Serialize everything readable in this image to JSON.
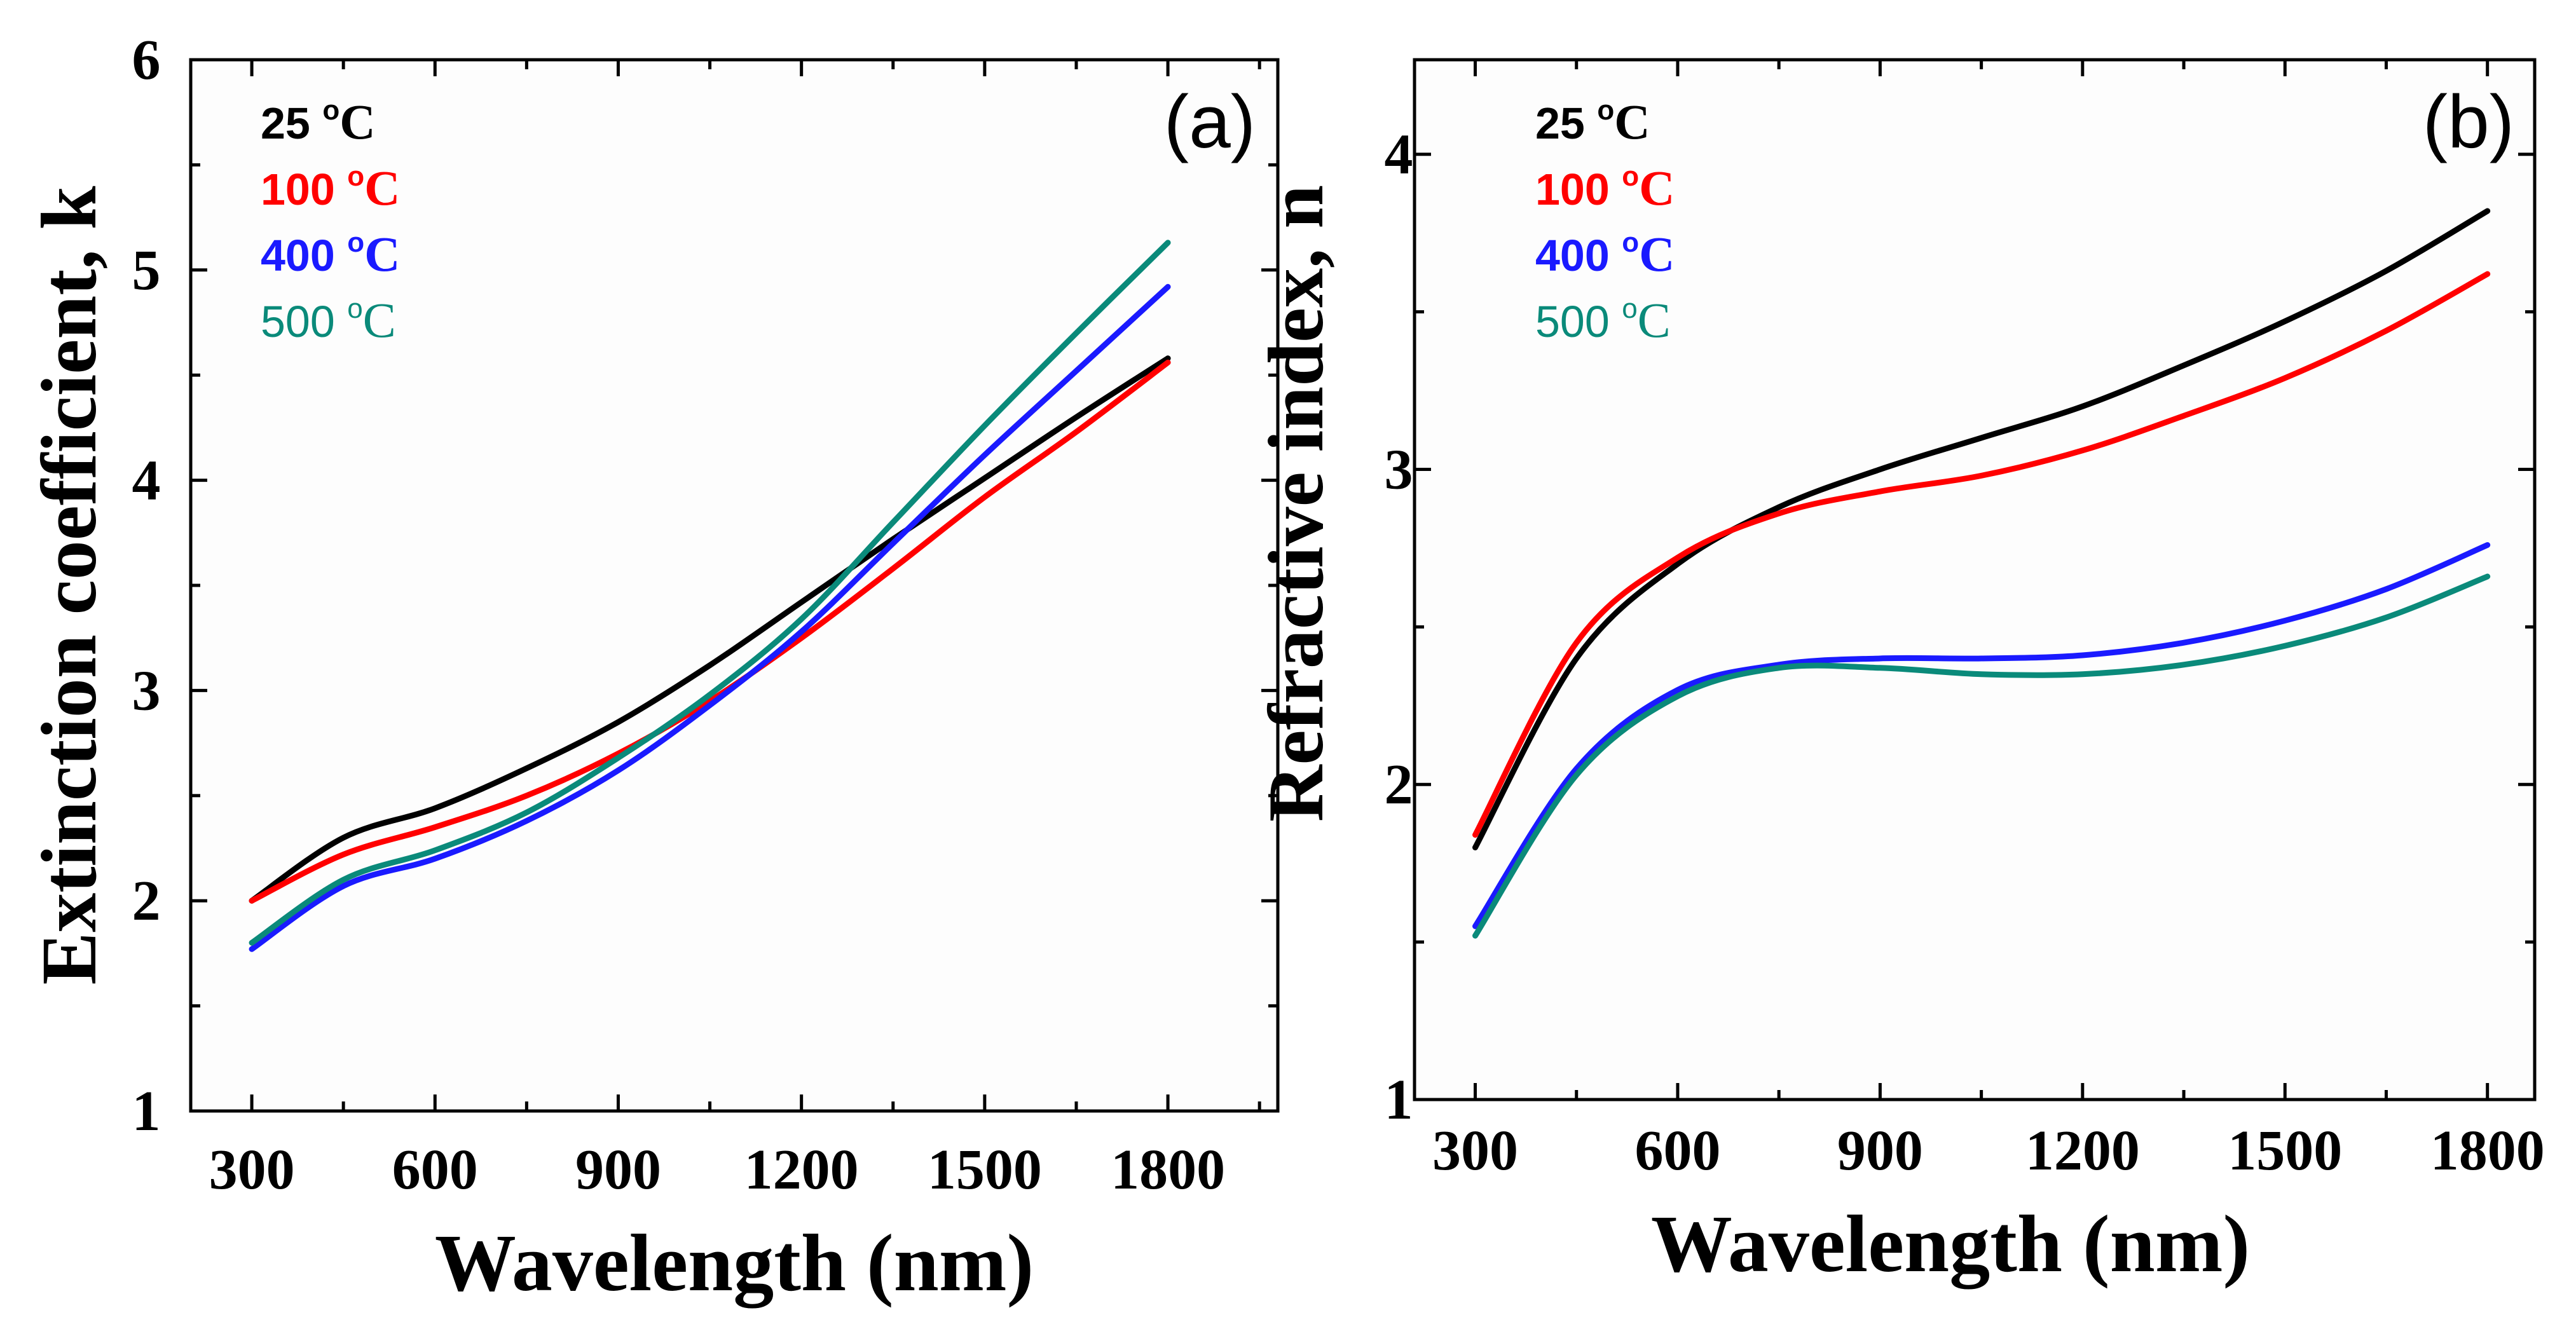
{
  "chart_data": [
    {
      "id": "a",
      "type": "line",
      "panel_label": "(a)",
      "xlabel": "Wavelength (nm)",
      "ylabel": "Extinction coefficient, k",
      "xlim": [
        200,
        1980
      ],
      "ylim": [
        1,
        6
      ],
      "xticks": [
        300,
        600,
        900,
        1200,
        1500,
        1800
      ],
      "xtick_labels": [
        "300",
        "600",
        "900",
        "1200",
        "1500",
        "1800"
      ],
      "yticks": [
        1,
        2,
        3,
        4,
        5,
        6
      ],
      "ytick_labels": [
        "1",
        "2",
        "3",
        "4",
        "5",
        "6"
      ],
      "legend_position": "top-left",
      "grid": false,
      "x": [
        300,
        450,
        600,
        750,
        900,
        1050,
        1200,
        1350,
        1500,
        1650,
        1800
      ],
      "series": [
        {
          "name": "25",
          "legend_label": "25 ",
          "superscript": "o",
          "unit": "C",
          "color": "#000000",
          "values": [
            2.0,
            2.3,
            2.44,
            2.63,
            2.85,
            3.12,
            3.42,
            3.72,
            4.01,
            4.3,
            4.58
          ]
        },
        {
          "name": "100",
          "legend_label": "100 ",
          "superscript": "o",
          "unit": "C",
          "color": "#ff0000",
          "values": [
            2.0,
            2.22,
            2.35,
            2.5,
            2.7,
            2.95,
            3.25,
            3.58,
            3.92,
            4.23,
            4.56
          ]
        },
        {
          "name": "400",
          "legend_label": "400 ",
          "superscript": "o",
          "unit": "C",
          "color": "#1a1aff",
          "values": [
            1.77,
            2.07,
            2.2,
            2.38,
            2.62,
            2.93,
            3.28,
            3.7,
            4.12,
            4.52,
            4.92
          ]
        },
        {
          "name": "500",
          "legend_label": "500 ",
          "superscript": "o",
          "unit": "C",
          "color": "#0a8a7a",
          "values": [
            1.8,
            2.1,
            2.24,
            2.42,
            2.68,
            2.98,
            3.34,
            3.8,
            4.26,
            4.7,
            5.13
          ]
        }
      ]
    },
    {
      "id": "b",
      "type": "line",
      "panel_label": "(b)",
      "xlabel": "Wavelength (nm)",
      "ylabel": "Refractive index, n",
      "xlim": [
        210,
        1870
      ],
      "ylim": [
        1,
        4.3
      ],
      "xticks": [
        300,
        600,
        900,
        1200,
        1500,
        1800
      ],
      "xtick_labels": [
        "300",
        "600",
        "900",
        "1200",
        "1500",
        "1800"
      ],
      "yticks": [
        1,
        2,
        3,
        4
      ],
      "ytick_labels": [
        "1",
        "2",
        "3",
        "4"
      ],
      "legend_position": "top-left",
      "grid": false,
      "x": [
        300,
        450,
        600,
        750,
        900,
        1050,
        1200,
        1350,
        1500,
        1650,
        1800
      ],
      "series": [
        {
          "name": "25",
          "legend_label": "25 ",
          "superscript": "o",
          "unit": "C",
          "color": "#000000",
          "values": [
            1.8,
            2.4,
            2.7,
            2.88,
            3.0,
            3.1,
            3.2,
            3.33,
            3.47,
            3.63,
            3.82
          ]
        },
        {
          "name": "100",
          "legend_label": "100 ",
          "superscript": "o",
          "unit": "C",
          "color": "#ff0000",
          "values": [
            1.84,
            2.45,
            2.72,
            2.86,
            2.93,
            2.98,
            3.06,
            3.17,
            3.29,
            3.44,
            3.62
          ]
        },
        {
          "name": "400",
          "legend_label": "400 ",
          "superscript": "o",
          "unit": "C",
          "color": "#1a1aff",
          "values": [
            1.55,
            2.05,
            2.3,
            2.38,
            2.4,
            2.4,
            2.41,
            2.45,
            2.52,
            2.62,
            2.76
          ]
        },
        {
          "name": "500",
          "legend_label": "500 ",
          "superscript": "o",
          "unit": "C",
          "color": "#0a8a7a",
          "values": [
            1.52,
            2.03,
            2.28,
            2.37,
            2.37,
            2.35,
            2.35,
            2.38,
            2.44,
            2.53,
            2.66
          ]
        }
      ]
    }
  ]
}
